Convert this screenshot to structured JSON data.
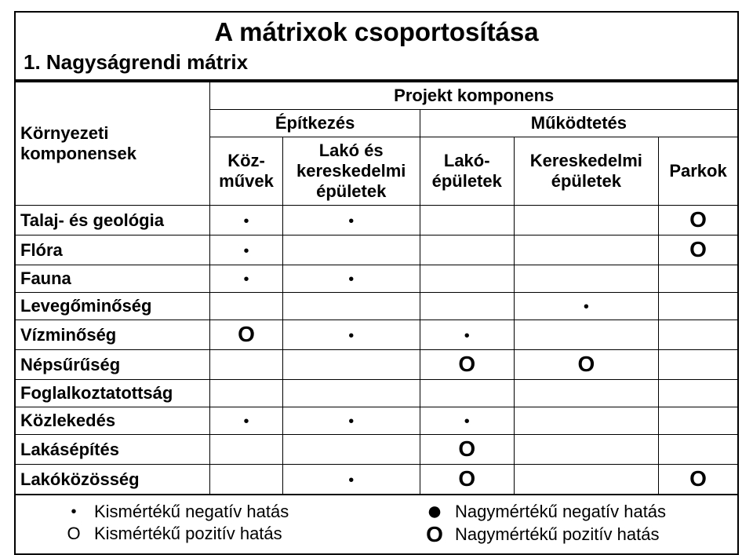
{
  "title": "A mátrixok csoportosítása",
  "subtitle": "1. Nagyságrendi mátrix",
  "headers": {
    "env_comp": "Környezeti\nkomponensek",
    "proj_comp": "Projekt komponens",
    "construction": "Építkezés",
    "operation": "Működtetés",
    "utilities": "Köz-\nművek",
    "res_comm_buildings": "Lakó és\nkereskedelmi\népületek",
    "res_buildings": "Lakó-\népületek",
    "comm_buildings": "Kereskedelmi\népületek",
    "parks": "Parkok"
  },
  "rows": [
    {
      "label": "Talaj- és geológia",
      "cells": [
        "sdot",
        "sdot",
        "",
        "",
        "bigO"
      ]
    },
    {
      "label": "Flóra",
      "cells": [
        "sdot",
        "",
        "",
        "",
        "bigO"
      ]
    },
    {
      "label": "Fauna",
      "cells": [
        "sdot",
        "sdot",
        "",
        "",
        ""
      ]
    },
    {
      "label": "Levegőminőség",
      "cells": [
        "",
        "",
        "",
        "sdot",
        ""
      ]
    },
    {
      "label": "Vízminőség",
      "cells": [
        "bigO",
        "sdot",
        "sdot",
        "",
        ""
      ]
    },
    {
      "label": "Népsűrűség",
      "cells": [
        "",
        "",
        "bigO",
        "bigO",
        ""
      ]
    },
    {
      "label": "Foglalkoztatottság",
      "cells": [
        "",
        "",
        "",
        "",
        ""
      ]
    },
    {
      "label": "Közlekedés",
      "cells": [
        "sdot",
        "sdot",
        "sdot",
        "",
        ""
      ]
    },
    {
      "label": "Lakásépítés",
      "cells": [
        "",
        "",
        "bigO",
        "",
        ""
      ]
    },
    {
      "label": "Lakóközösség",
      "cells": [
        "",
        "sdot",
        "bigO",
        "",
        "bigO"
      ]
    }
  ],
  "legend": {
    "small_neg": "Kismértékű negatív hatás",
    "small_pos": "Kismértékű pozitív hatás",
    "big_neg": "Nagymértékű negatív hatás",
    "big_pos": "Nagymértékű pozitív hatás"
  },
  "symbols": {
    "sdot": "•",
    "bdot": "●",
    "bigO": "O",
    "smallO": "O"
  },
  "style": {
    "bg": "#ffffff",
    "border": "#000000",
    "font_family": "Arial",
    "title_fontsize": 33,
    "subtitle_fontsize": 26,
    "cell_fontsize": 22,
    "legend_fontsize": 22
  }
}
